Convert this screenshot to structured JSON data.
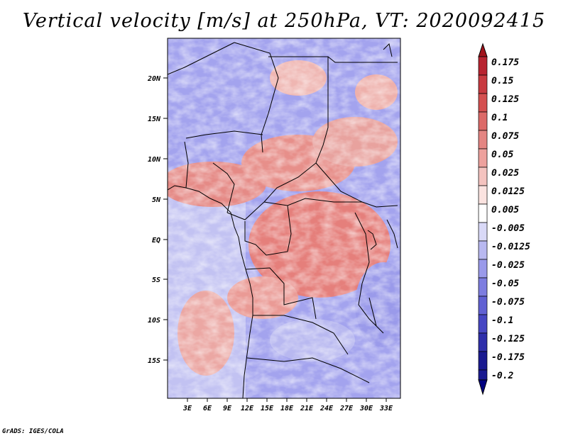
{
  "title": "Vertical velocity [m/s] at 250hPa, VT: 2020092415",
  "credit": "GrADS: IGES/COLA",
  "map": {
    "lat_ticks": [
      "20N",
      "15N",
      "10N",
      "5N",
      "EQ",
      "5S",
      "10S",
      "15S"
    ],
    "lon_ticks": [
      "3E",
      "6E",
      "9E",
      "12E",
      "15E",
      "18E",
      "21E",
      "24E",
      "27E",
      "30E",
      "33E"
    ]
  },
  "colorbar": {
    "labels": [
      "0.175",
      "0.15",
      "0.125",
      "0.1",
      "0.075",
      "0.05",
      "0.025",
      "0.0125",
      "0.005",
      "-0.005",
      "-0.0125",
      "-0.025",
      "-0.05",
      "-0.075",
      "-0.1",
      "-0.125",
      "-0.175",
      "-0.2"
    ],
    "colors": [
      "#a1141c",
      "#b82430",
      "#c83a40",
      "#d45050",
      "#dc6a68",
      "#e48582",
      "#eda19d",
      "#f4c3bf",
      "#fbe3e0",
      "#ffffff",
      "#d9d9f7",
      "#b8b8f0",
      "#9a9aea",
      "#7d7de0",
      "#6161d3",
      "#4646c3",
      "#2e2eaa",
      "#1a1a90",
      "#000080"
    ]
  }
}
